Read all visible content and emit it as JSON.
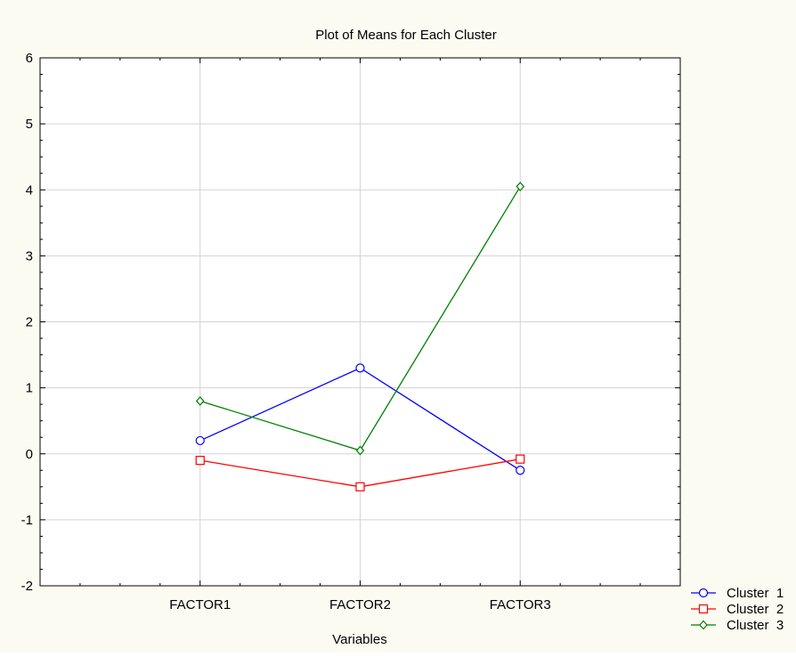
{
  "colors": {
    "background": "#fbfbf1",
    "plot_area": "#ffffff",
    "grid": "#d3d3d3",
    "axis": "#000000"
  },
  "chart_data": {
    "type": "line",
    "title": "Plot of Means for Each Cluster",
    "xlabel": "Variables",
    "ylabel": "",
    "categories": [
      "FACTOR1",
      "FACTOR2",
      "FACTOR3"
    ],
    "ylim": [
      -2,
      6
    ],
    "yticks": [
      -2,
      -1,
      0,
      1,
      2,
      3,
      4,
      5,
      6
    ],
    "grid": true,
    "legend_position": "bottom-right",
    "series": [
      {
        "name": "Cluster  1",
        "values": [
          0.2,
          1.3,
          -0.25
        ],
        "color": "#0000ff",
        "marker": "circle"
      },
      {
        "name": "Cluster  2",
        "values": [
          -0.1,
          -0.5,
          -0.08
        ],
        "color": "#ff0000",
        "marker": "square"
      },
      {
        "name": "Cluster  3",
        "values": [
          0.8,
          0.05,
          4.05
        ],
        "color": "#008000",
        "marker": "diamond"
      }
    ]
  }
}
